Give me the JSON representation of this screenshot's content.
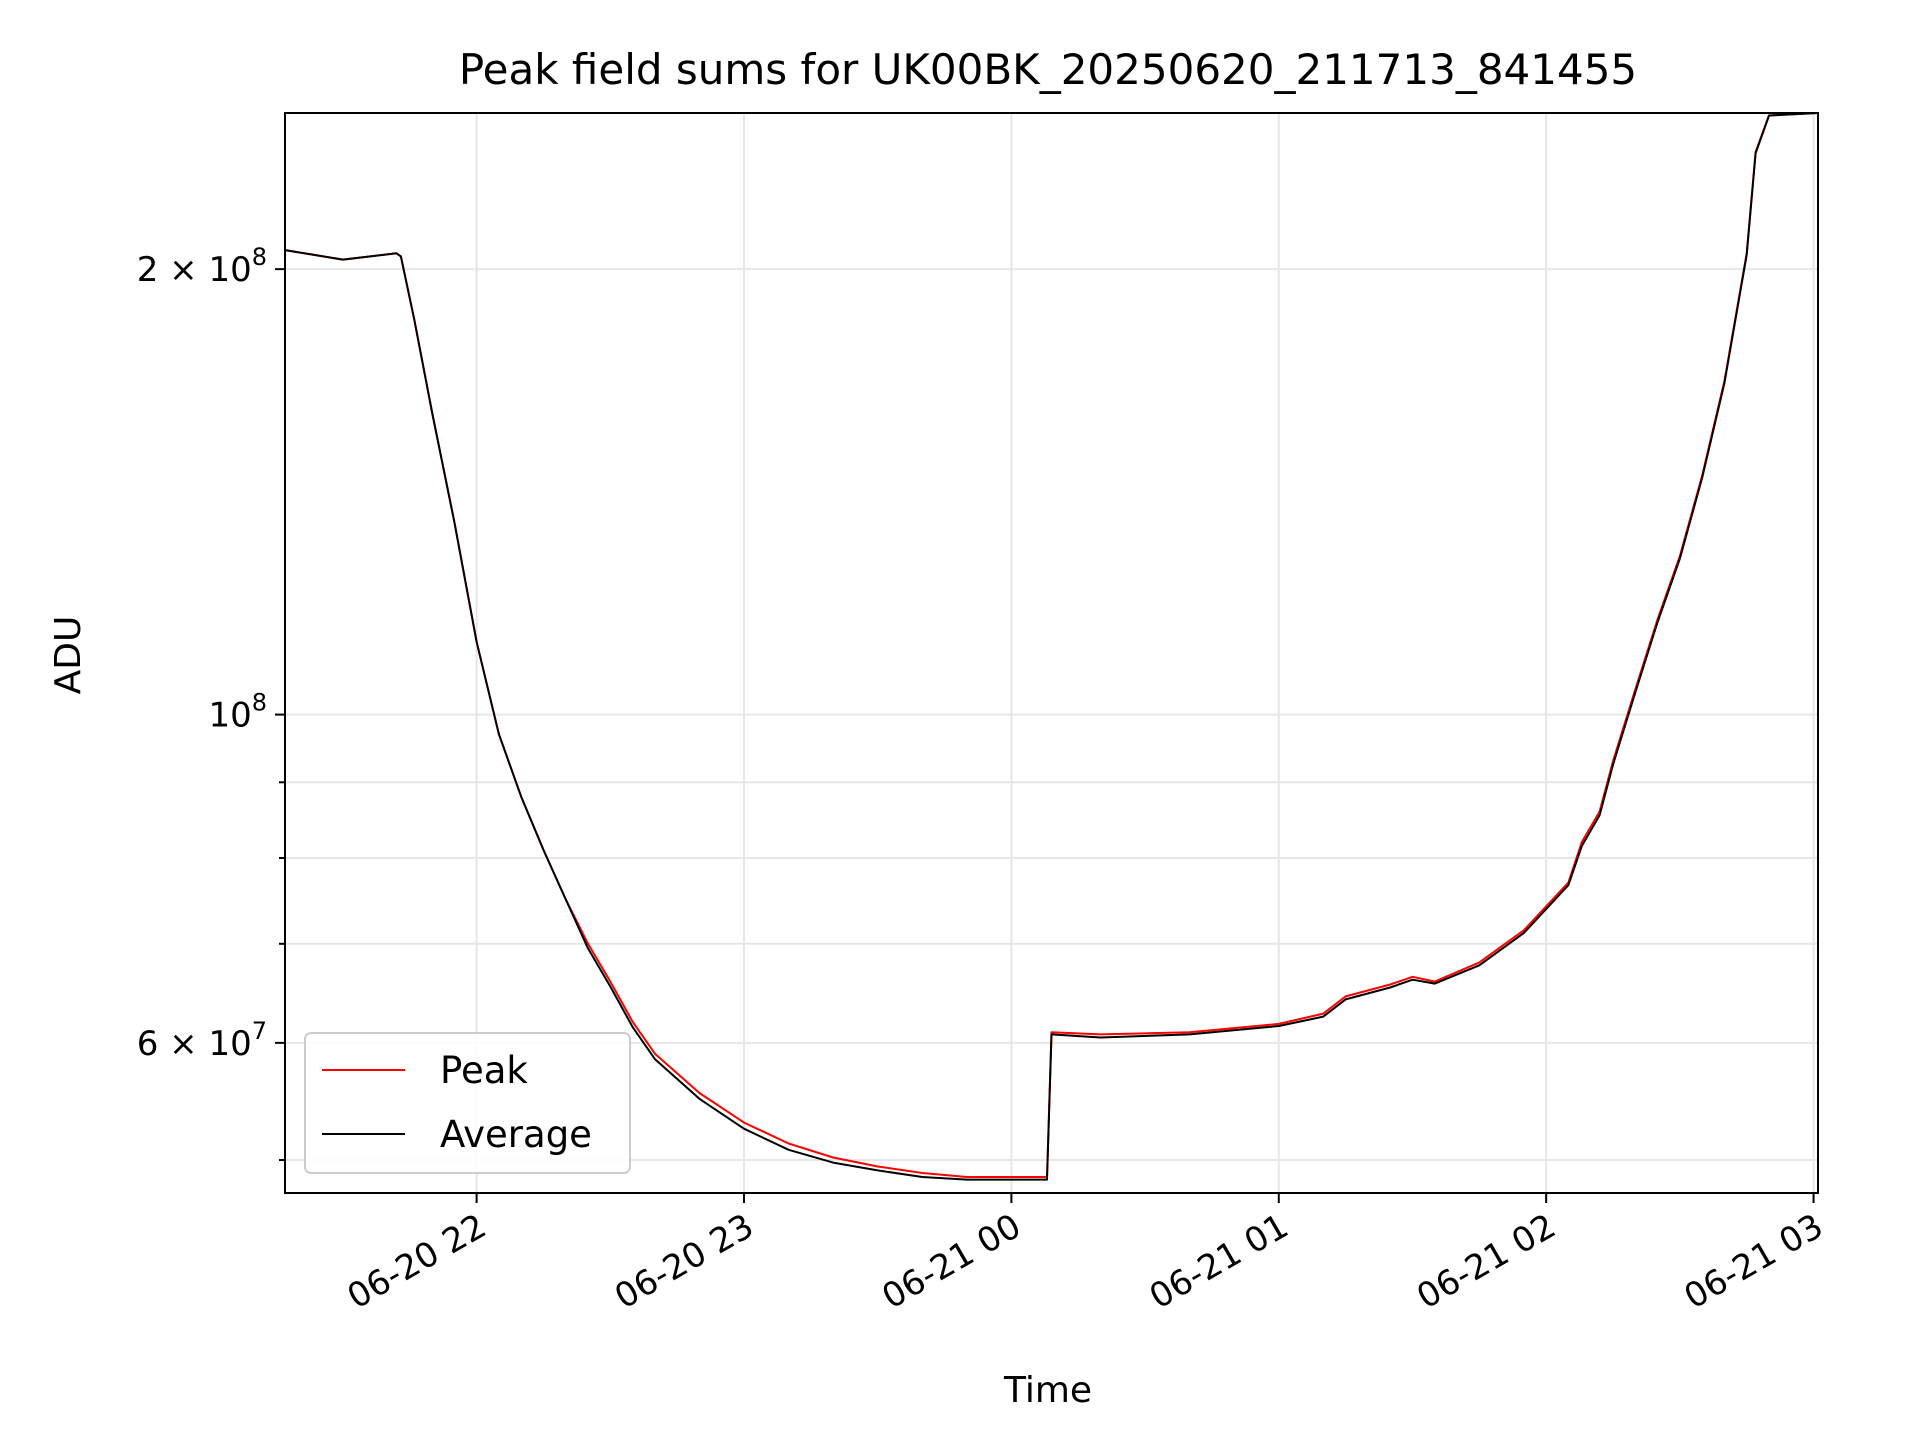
{
  "chart_data": {
    "type": "line",
    "title": "Peak field sums for UK00BK_20250620_211713_841455",
    "xlabel": "Time",
    "ylabel": "ADU",
    "yscale": "log",
    "grid": true,
    "legend_position": "lower-left",
    "xlim": [
      "2025-06-20 21:17",
      "2025-06-21 03:01"
    ],
    "ylim": [
      47500000,
      255000000
    ],
    "x_ticks": [
      {
        "value": "2025-06-20 22:00",
        "label": "06-20 22"
      },
      {
        "value": "2025-06-20 23:00",
        "label": "06-20 23"
      },
      {
        "value": "2025-06-21 00:00",
        "label": "06-21 00"
      },
      {
        "value": "2025-06-21 01:00",
        "label": "06-21 01"
      },
      {
        "value": "2025-06-21 02:00",
        "label": "06-21 02"
      },
      {
        "value": "2025-06-21 03:00",
        "label": "06-21 03"
      }
    ],
    "y_ticks_major": [
      {
        "value": 200000000,
        "base": "2 × 10",
        "exp": "8"
      },
      {
        "value": 100000000,
        "base": "10",
        "exp": "8"
      },
      {
        "value": 60000000,
        "base": "6 × 10",
        "exp": "7"
      }
    ],
    "y_ticks_minor": [
      50000000,
      70000000,
      80000000,
      90000000
    ],
    "x": [
      "2025-06-20 21:17",
      "2025-06-20 21:30",
      "2025-06-20 21:42",
      "2025-06-20 21:43",
      "2025-06-20 21:46",
      "2025-06-20 21:50",
      "2025-06-20 21:55",
      "2025-06-20 22:00",
      "2025-06-20 22:05",
      "2025-06-20 22:10",
      "2025-06-20 22:15",
      "2025-06-20 22:20",
      "2025-06-20 22:25",
      "2025-06-20 22:30",
      "2025-06-20 22:35",
      "2025-06-20 22:40",
      "2025-06-20 22:50",
      "2025-06-20 23:00",
      "2025-06-20 23:10",
      "2025-06-20 23:20",
      "2025-06-20 23:30",
      "2025-06-20 23:40",
      "2025-06-20 23:50",
      "2025-06-21 00:05",
      "2025-06-21 00:08",
      "2025-06-21 00:09",
      "2025-06-21 00:20",
      "2025-06-21 00:40",
      "2025-06-21 01:00",
      "2025-06-21 01:10",
      "2025-06-21 01:15",
      "2025-06-21 01:25",
      "2025-06-21 01:30",
      "2025-06-21 01:35",
      "2025-06-21 01:45",
      "2025-06-21 01:55",
      "2025-06-21 02:05",
      "2025-06-21 02:08",
      "2025-06-21 02:12",
      "2025-06-21 02:15",
      "2025-06-21 02:20",
      "2025-06-21 02:25",
      "2025-06-21 02:30",
      "2025-06-21 02:35",
      "2025-06-21 02:40",
      "2025-06-21 02:45",
      "2025-06-21 02:47",
      "2025-06-21 02:50",
      "2025-06-21 03:01"
    ],
    "series": [
      {
        "name": "Peak",
        "color": "#ff0000",
        "values": [
          206000000,
          203000000,
          205000000,
          204000000,
          185000000,
          160000000,
          135000000,
          112000000,
          97000000,
          88000000,
          81000000,
          75000000,
          70000000,
          66000000,
          62000000,
          59000000,
          55500000,
          53000000,
          51300000,
          50200000,
          49500000,
          49000000,
          48700000,
          48700000,
          48700000,
          61000000,
          60800000,
          61000000,
          61800000,
          62800000,
          64500000,
          65700000,
          66500000,
          66000000,
          68000000,
          71500000,
          77000000,
          82000000,
          86000000,
          93000000,
          104000000,
          116000000,
          128000000,
          145000000,
          168000000,
          205000000,
          240000000,
          254000000,
          255000000
        ]
      },
      {
        "name": "Average",
        "color": "#000000",
        "values": [
          206000000,
          203000000,
          205000000,
          204000000,
          185000000,
          160000000,
          135000000,
          112000000,
          97000000,
          88000000,
          81000000,
          75000000,
          69500000,
          65500000,
          61500000,
          58500000,
          55000000,
          52500000,
          50800000,
          49800000,
          49200000,
          48700000,
          48500000,
          48500000,
          48500000,
          60800000,
          60500000,
          60800000,
          61600000,
          62500000,
          64200000,
          65400000,
          66200000,
          65800000,
          67700000,
          71200000,
          76700000,
          81500000,
          85500000,
          92500000,
          103500000,
          115500000,
          127500000,
          144500000,
          167500000,
          204500000,
          239500000,
          254000000,
          255000000
        ]
      }
    ]
  }
}
